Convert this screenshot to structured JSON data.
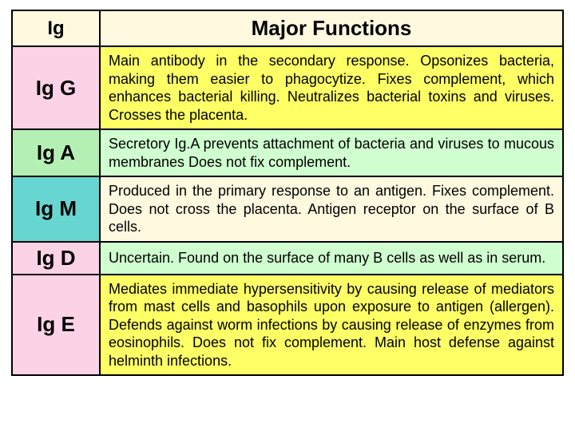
{
  "header": {
    "ig_label": "Ig",
    "functions_label": "Major Functions",
    "ig_bg": "#fff9e0",
    "fn_bg": "#fff9e0"
  },
  "rows": [
    {
      "label": "Ig G",
      "desc": "Main antibody in the secondary response. Opsonizes bacteria, making them easier to phagocytize. Fixes complement, which enhances bacterial killing. Neutralizes bacterial toxins and viruses. Crosses the placenta.",
      "label_bg": "#fbd2e6",
      "desc_bg": "#ffff66"
    },
    {
      "label": "Ig A",
      "desc": "Secretory Ig.A prevents attachment of bacteria and viruses to mucous membranes Does not fix complement.",
      "label_bg": "#b4f0b4",
      "desc_bg": "#d0ffd0"
    },
    {
      "label": "Ig M",
      "desc": "Produced in the primary response to an antigen. Fixes complement. Does not cross the placenta. Antigen receptor on the surface of B cells.",
      "label_bg": "#67d6d0",
      "desc_bg": "#fff9e0"
    },
    {
      "label": "Ig D",
      "desc": "Uncertain. Found on the surface of many B cells as well as in serum.",
      "label_bg": "#fbd2e6",
      "desc_bg": "#d0ffd0"
    },
    {
      "label": "Ig E",
      "desc": "Mediates immediate hypersensitivity by causing release of mediators from mast cells and basophils upon exposure to antigen (allergen). Defends against worm infections by causing release of enzymes from eosinophils. Does not fix complement. Main host defense against  helminth infections.",
      "label_bg": "#fbd2e6",
      "desc_bg": "#ffff66"
    }
  ]
}
